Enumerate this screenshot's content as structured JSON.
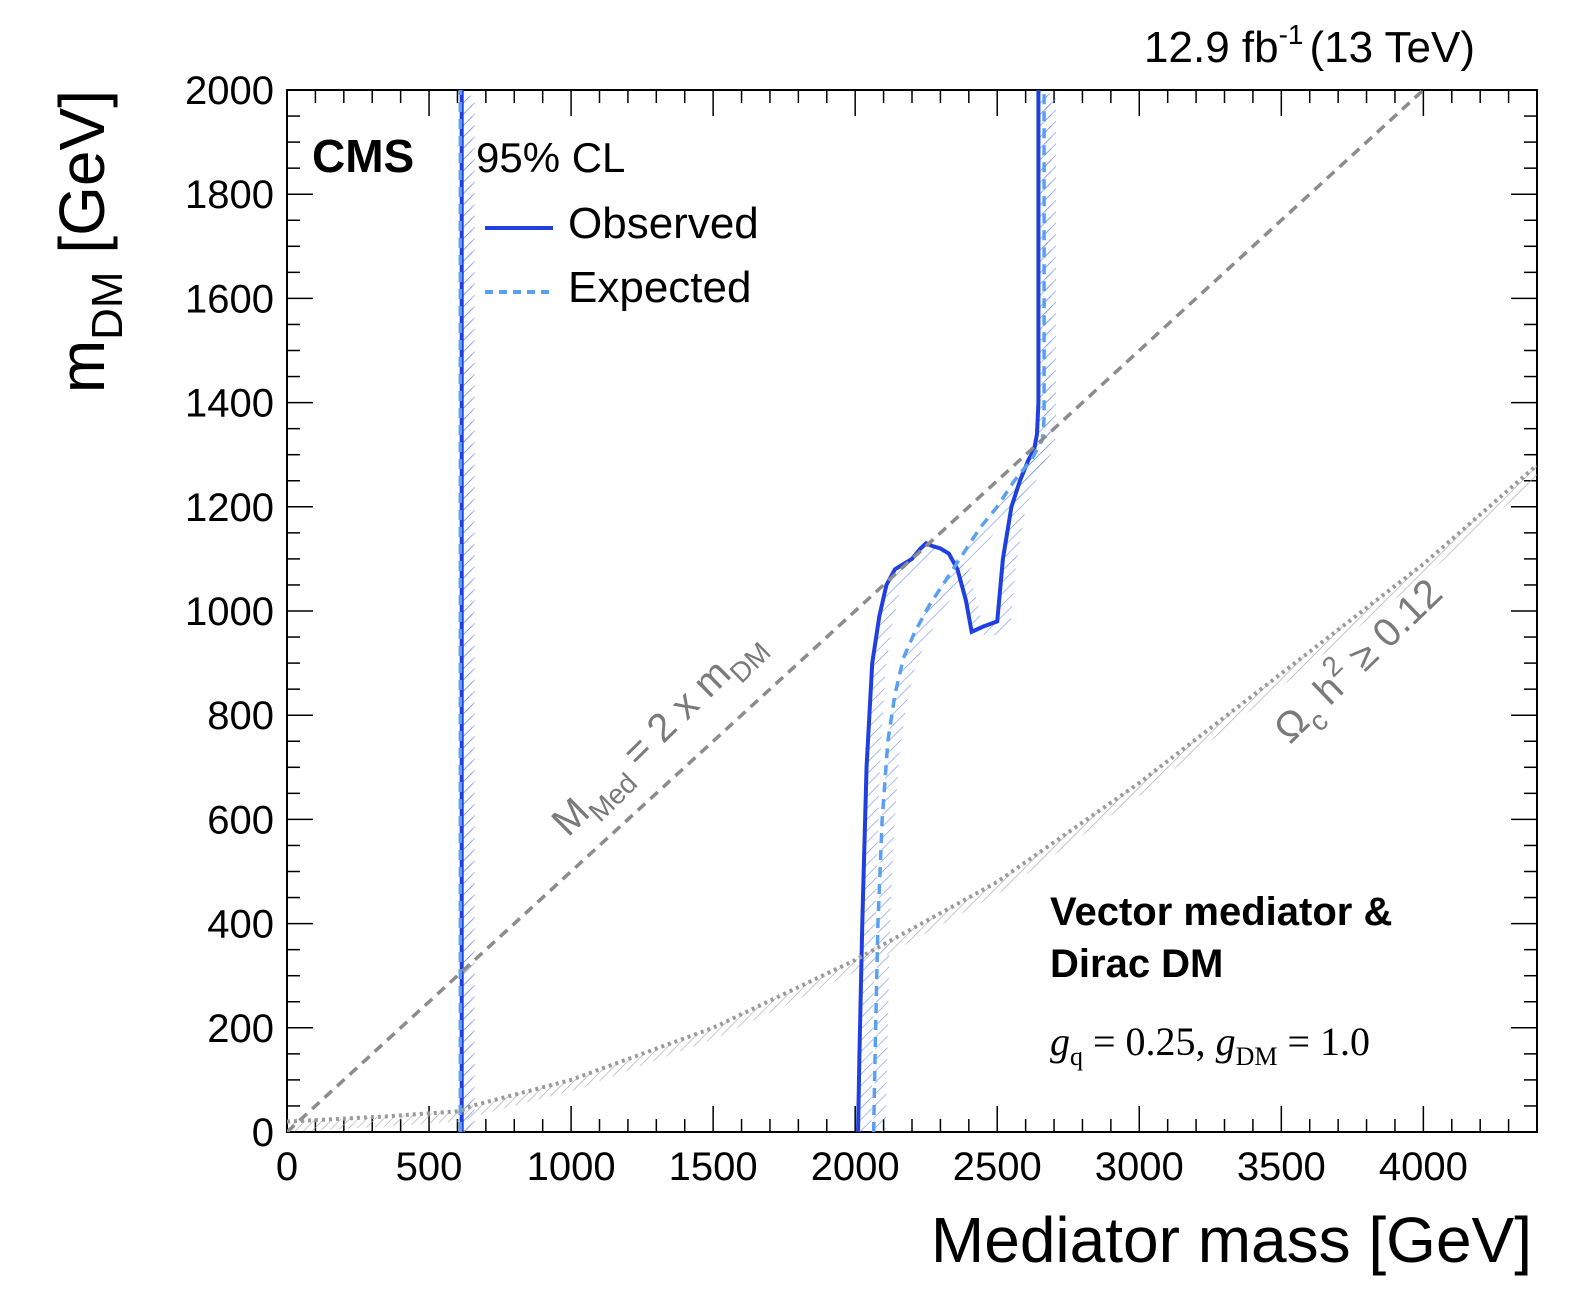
{
  "chart_data": {
    "type": "line",
    "title": "",
    "lumi_label": {
      "value": "12.9 fb",
      "sup": "-1",
      "energy": "(13 TeV)"
    },
    "experiment": "CMS",
    "xlabel": "Mediator mass [GeV]",
    "ylabel": {
      "main": "m",
      "sub": "DM",
      "unit": " [GeV]"
    },
    "xlim": [
      0,
      4400
    ],
    "ylim": [
      0,
      2000
    ],
    "x_ticks": [
      0,
      500,
      1000,
      1500,
      2000,
      2500,
      3000,
      3500,
      4000
    ],
    "x_tick_labels": [
      "0",
      "500",
      "1000",
      "1500",
      "2000",
      "2500",
      "3000",
      "3500",
      "4000"
    ],
    "y_ticks": [
      0,
      200,
      400,
      600,
      800,
      1000,
      1200,
      1400,
      1600,
      1800,
      2000
    ],
    "y_tick_labels": [
      "0",
      "200",
      "400",
      "600",
      "800",
      "1000",
      "1200",
      "1400",
      "1600",
      "1800",
      "2000"
    ],
    "grid": false,
    "legend": {
      "header": "95% CL",
      "placement": "top-left",
      "entries": [
        {
          "label": "Observed",
          "color": "#1f3fe0",
          "style": "solid"
        },
        {
          "label": "Expected",
          "color": "#5aa0f0",
          "style": "dashed"
        }
      ]
    },
    "annotations": {
      "model_line1": "Vector mediator &",
      "model_line2": "Dirac DM",
      "couplings": {
        "gq_sym": "g",
        "gq_sub": "q",
        "gq_val": " = 0.25, ",
        "gdm_sym": "g",
        "gdm_sub": "DM",
        "gdm_val": " = 1.0"
      },
      "diagonal": {
        "pre": "M",
        "sub": "Med",
        "post": " = 2 x m",
        "sub2": "DM"
      },
      "relic": {
        "pre": "Ω",
        "sub": "c",
        "mid": " h",
        "sup": "2",
        "post": " ≥ 0.12"
      }
    },
    "series": [
      {
        "name": "Observed",
        "color": "#1f3fe0",
        "style": "solid",
        "segments": [
          {
            "x": [
              615,
              615
            ],
            "y": [
              0,
              2000
            ]
          },
          {
            "x": [
              2010,
              2015,
              2025,
              2040,
              2060,
              2085,
              2110,
              2140,
              2170,
              2200,
              2230,
              2250,
              2270,
              2300,
              2330,
              2360,
              2390,
              2410,
              2450,
              2500,
              2520,
              2550,
              2580,
              2610,
              2630,
              2640,
              2645,
              2645
            ],
            "y": [
              0,
              150,
              400,
              700,
              900,
              990,
              1050,
              1080,
              1090,
              1100,
              1120,
              1130,
              1125,
              1120,
              1110,
              1080,
              1020,
              960,
              970,
              980,
              1100,
              1200,
              1250,
              1290,
              1310,
              1340,
              1400,
              2000
            ]
          }
        ]
      },
      {
        "name": "Expected",
        "color": "#5aa0f0",
        "style": "dashed",
        "segments": [
          {
            "x": [
              610,
              610
            ],
            "y": [
              0,
              2000
            ]
          },
          {
            "x": [
              2065,
              2070,
              2080,
              2095,
              2115,
              2140,
              2170,
              2210,
              2260,
              2320,
              2380,
              2440,
              2500,
              2560,
              2620,
              2660,
              2665,
              2665
            ],
            "y": [
              0,
              150,
              400,
              600,
              750,
              840,
              910,
              960,
              1010,
              1060,
              1110,
              1160,
              1200,
              1250,
              1290,
              1330,
              1370,
              2000
            ]
          }
        ]
      },
      {
        "name": "M_Med = 2 x m_DM",
        "color": "#8c8c8c",
        "style": "dashed",
        "x": [
          0,
          4000
        ],
        "y": [
          0,
          2000
        ]
      },
      {
        "name": "Relic density",
        "color": "#9a9a9a",
        "style": "dotted",
        "x": [
          0,
          350,
          610,
          650,
          1000,
          1500,
          2000,
          2500,
          3000,
          3500,
          4000,
          4400
        ],
        "y": [
          20,
          30,
          40,
          50,
          100,
          200,
          330,
          480,
          670,
          880,
          1090,
          1280
        ]
      }
    ]
  }
}
